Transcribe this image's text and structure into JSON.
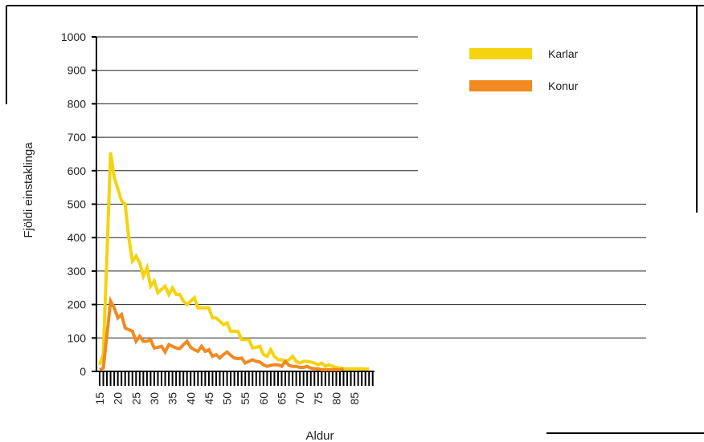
{
  "chart_data": {
    "type": "line",
    "title": "",
    "xlabel": "Aldur",
    "ylabel": "Fjöldi einstaklinga",
    "xlim": [
      15,
      90
    ],
    "ylim": [
      0,
      1000
    ],
    "y_ticks": [
      0,
      100,
      200,
      300,
      400,
      500,
      600,
      700,
      800,
      900,
      1000
    ],
    "x_tick_labels": [
      15,
      20,
      25,
      30,
      35,
      40,
      45,
      50,
      55,
      60,
      65,
      70,
      75,
      80,
      85
    ],
    "grid": true,
    "legend_position": "top-right",
    "series": [
      {
        "name": "Karlar",
        "color": "#f5d30f",
        "x": [
          15,
          16,
          17,
          18,
          19,
          20,
          21,
          22,
          23,
          24,
          25,
          26,
          27,
          28,
          29,
          30,
          31,
          32,
          33,
          34,
          35,
          36,
          37,
          38,
          39,
          40,
          41,
          42,
          43,
          44,
          45,
          46,
          47,
          48,
          49,
          50,
          51,
          52,
          53,
          54,
          55,
          56,
          57,
          58,
          59,
          60,
          61,
          62,
          63,
          64,
          65,
          66,
          67,
          68,
          69,
          70,
          71,
          72,
          73,
          74,
          75,
          76,
          77,
          78,
          79,
          80,
          81,
          82,
          83,
          84,
          85,
          86,
          87,
          88,
          89
        ],
        "values": [
          20,
          50,
          350,
          655,
          580,
          545,
          510,
          500,
          400,
          330,
          345,
          325,
          285,
          310,
          255,
          270,
          235,
          245,
          255,
          230,
          250,
          230,
          230,
          210,
          200,
          210,
          220,
          190,
          190,
          190,
          190,
          160,
          160,
          150,
          140,
          145,
          120,
          120,
          120,
          95,
          95,
          95,
          70,
          72,
          75,
          50,
          45,
          65,
          45,
          35,
          35,
          30,
          35,
          45,
          30,
          25,
          30,
          30,
          28,
          25,
          20,
          25,
          15,
          20,
          15,
          12,
          10,
          8,
          8,
          8,
          8,
          8,
          8,
          7,
          7
        ]
      },
      {
        "name": "Konur",
        "color": "#f08a21",
        "x": [
          15,
          16,
          17,
          18,
          19,
          20,
          21,
          22,
          23,
          24,
          25,
          26,
          27,
          28,
          29,
          30,
          31,
          32,
          33,
          34,
          35,
          36,
          37,
          38,
          39,
          40,
          41,
          42,
          43,
          44,
          45,
          46,
          47,
          48,
          49,
          50,
          51,
          52,
          53,
          54,
          55,
          56,
          57,
          58,
          59,
          60,
          61,
          62,
          63,
          64,
          65,
          66,
          67,
          68,
          69,
          70,
          71,
          72,
          73,
          74,
          75,
          76,
          77,
          78,
          79,
          80,
          81,
          82
        ],
        "values": [
          5,
          10,
          110,
          210,
          190,
          160,
          170,
          130,
          125,
          120,
          90,
          105,
          90,
          90,
          95,
          70,
          72,
          75,
          58,
          80,
          75,
          70,
          68,
          80,
          90,
          72,
          65,
          60,
          75,
          60,
          65,
          45,
          50,
          40,
          50,
          58,
          48,
          40,
          38,
          40,
          25,
          30,
          35,
          30,
          28,
          20,
          15,
          18,
          20,
          20,
          15,
          30,
          18,
          15,
          15,
          12,
          12,
          15,
          10,
          8,
          8,
          5,
          5,
          5,
          5,
          5,
          5,
          8
        ]
      }
    ]
  }
}
